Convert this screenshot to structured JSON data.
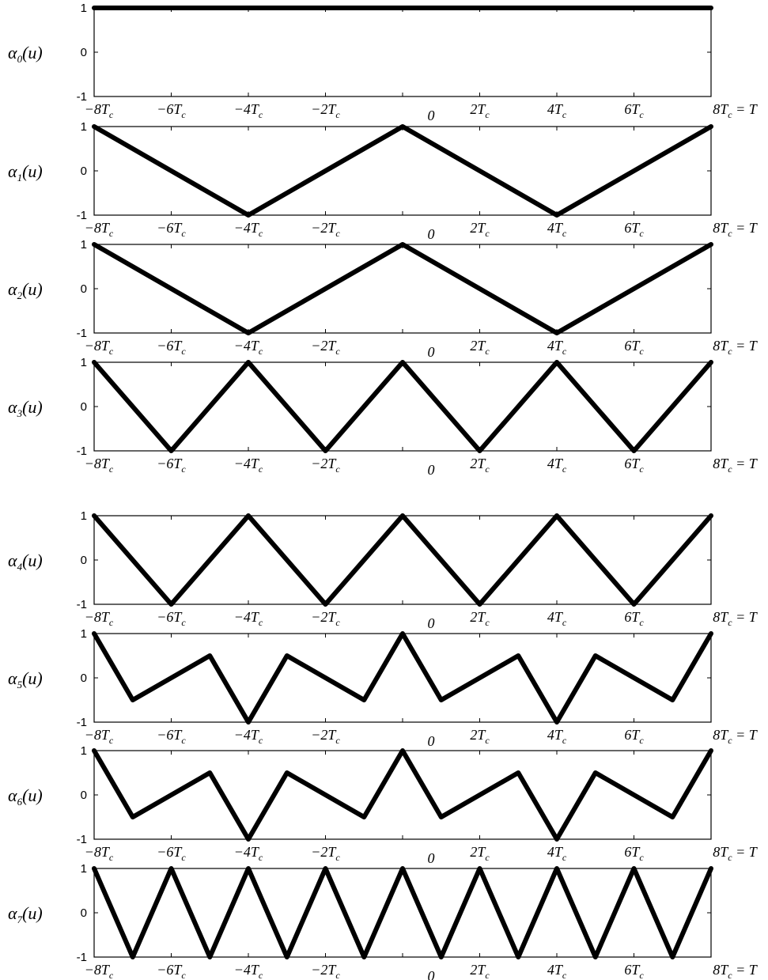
{
  "chart_data": [
    {
      "type": "line",
      "ylabel": "α₀(u)",
      "ylim": [
        -1,
        1
      ],
      "yticks": [
        "1",
        "0",
        "-1"
      ],
      "xticks": [
        "−8Tc",
        "−6Tc",
        "−4Tc",
        "−2Tc",
        "0",
        "2Tc",
        "4Tc",
        "6Tc",
        "8Tc = T"
      ],
      "xlim": [
        -8,
        8
      ],
      "x": [
        -8,
        8
      ],
      "y": [
        1,
        1
      ]
    },
    {
      "type": "line",
      "ylabel": "α₁(u)",
      "ylim": [
        -1,
        1
      ],
      "yticks": [
        "1",
        "0",
        "-1"
      ],
      "xticks": [
        "−8Tc",
        "−6Tc",
        "−4Tc",
        "−2Tc",
        "0",
        "2Tc",
        "4Tc",
        "6Tc",
        "8Tc = T"
      ],
      "xlim": [
        -8,
        8
      ],
      "x": [
        -8,
        -4,
        0,
        4,
        8
      ],
      "y": [
        1,
        -1,
        1,
        -1,
        1
      ]
    },
    {
      "type": "line",
      "ylabel": "α₂(u)",
      "ylim": [
        -1,
        1
      ],
      "yticks": [
        "1",
        "0",
        "-1"
      ],
      "xticks": [
        "−8Tc",
        "−6Tc",
        "−4Tc",
        "−2Tc",
        "0",
        "2Tc",
        "4Tc",
        "6Tc",
        "8Tc = T"
      ],
      "xlim": [
        -8,
        8
      ],
      "x": [
        -8,
        -4,
        0,
        4,
        8
      ],
      "y": [
        1,
        -1,
        1,
        -1,
        1
      ]
    },
    {
      "type": "line",
      "ylabel": "α₃(u)",
      "ylim": [
        -1,
        1
      ],
      "yticks": [
        "1",
        "0",
        "-1"
      ],
      "xticks": [
        "−8Tc",
        "−6Tc",
        "−4Tc",
        "−2Tc",
        "0",
        "2Tc",
        "4Tc",
        "6Tc",
        "8Tc = T"
      ],
      "xlim": [
        -8,
        8
      ],
      "x": [
        -8,
        -6,
        -4,
        -2,
        0,
        2,
        4,
        6,
        8
      ],
      "y": [
        1,
        -1,
        1,
        -1,
        1,
        -1,
        1,
        -1,
        1
      ]
    },
    {
      "type": "line",
      "ylabel": "α₄(u)",
      "ylim": [
        -1,
        1
      ],
      "yticks": [
        "1",
        "0",
        "-1"
      ],
      "xticks": [
        "−8Tc",
        "−6Tc",
        "−4Tc",
        "−2Tc",
        "0",
        "2Tc",
        "4Tc",
        "6Tc",
        "8Tc = T"
      ],
      "xlim": [
        -8,
        8
      ],
      "x": [
        -8,
        -6,
        -4,
        -2,
        0,
        2,
        4,
        6,
        8
      ],
      "y": [
        1,
        -1,
        1,
        -1,
        1,
        -1,
        1,
        -1,
        1
      ]
    },
    {
      "type": "line",
      "ylabel": "α₅(u)",
      "ylim": [
        -1,
        1
      ],
      "yticks": [
        "1",
        "0",
        "-1"
      ],
      "xticks": [
        "−8Tc",
        "−6Tc",
        "−4Tc",
        "−2Tc",
        "0",
        "2Tc",
        "4Tc",
        "6Tc",
        "8Tc = T"
      ],
      "xlim": [
        -8,
        8
      ],
      "x": [
        -8,
        -7,
        -5,
        -4,
        -3,
        -1,
        0,
        1,
        3,
        4,
        5,
        7,
        8
      ],
      "y": [
        1,
        -0.5,
        0.5,
        -1,
        0.5,
        -0.5,
        1,
        -0.5,
        0.5,
        -1,
        0.5,
        -0.5,
        1
      ]
    },
    {
      "type": "line",
      "ylabel": "α₆(u)",
      "ylim": [
        -1,
        1
      ],
      "yticks": [
        "1",
        "0",
        "-1"
      ],
      "xticks": [
        "−8Tc",
        "−6Tc",
        "−4Tc",
        "−2Tc",
        "0",
        "2Tc",
        "4Tc",
        "6Tc",
        "8Tc = T"
      ],
      "xlim": [
        -8,
        8
      ],
      "x": [
        -8,
        -7,
        -5,
        -4,
        -3,
        -1,
        0,
        1,
        3,
        4,
        5,
        7,
        8
      ],
      "y": [
        1,
        -0.5,
        0.5,
        -1,
        0.5,
        -0.5,
        1,
        -0.5,
        0.5,
        -1,
        0.5,
        -0.5,
        1
      ]
    },
    {
      "type": "line",
      "ylabel": "α₇(u)",
      "ylim": [
        -1,
        1
      ],
      "yticks": [
        "1",
        "0",
        "-1"
      ],
      "xticks": [
        "−8Tc",
        "−6Tc",
        "−4Tc",
        "−2Tc",
        "0",
        "2Tc",
        "4Tc",
        "6Tc",
        "8Tc = T"
      ],
      "xlim": [
        -8,
        8
      ],
      "x": [
        -8,
        -7,
        -6,
        -5,
        -4,
        -3,
        -2,
        -1,
        0,
        1,
        2,
        3,
        4,
        5,
        6,
        7,
        8
      ],
      "y": [
        1,
        -1,
        1,
        -1,
        1,
        -1,
        1,
        -1,
        1,
        -1,
        1,
        -1,
        1,
        -1,
        1,
        -1,
        1
      ]
    }
  ]
}
